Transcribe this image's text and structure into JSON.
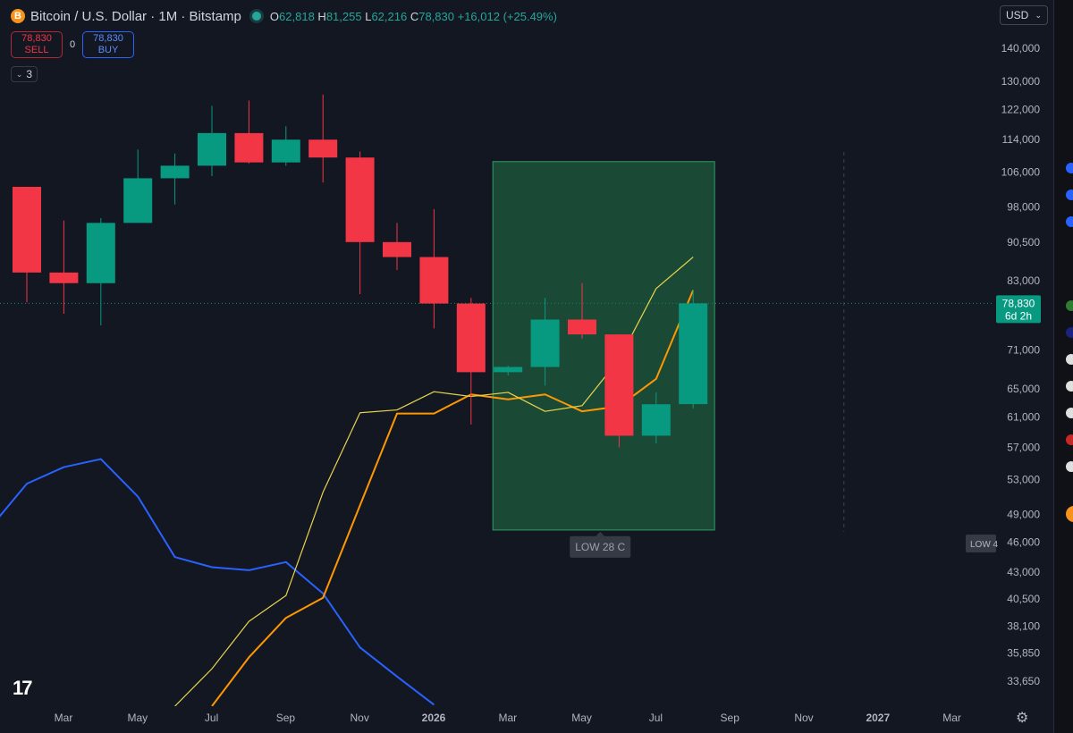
{
  "header": {
    "coin_letter": "B",
    "title": "Bitcoin / U.S. Dollar · 1M · Bitstamp",
    "ohlc": {
      "o_label": "O",
      "o": "62,818",
      "h_label": "H",
      "h": "81,255",
      "l_label": "L",
      "l": "62,216",
      "c_label": "C",
      "c": "78,830",
      "change": "+16,012 (+25.49%)"
    }
  },
  "trade": {
    "sell_price": "78,830",
    "sell_label": "SELL",
    "spread": "0",
    "buy_price": "78,830",
    "buy_label": "BUY"
  },
  "indicators_count": "3",
  "currency": "USD",
  "logo_text": "17",
  "colors": {
    "up": "#089981",
    "down": "#f23645",
    "bg": "#131722",
    "zone": "#1e5c3e",
    "orange": "#ff9800",
    "yellow": "#e8d44d",
    "blue": "#2962ff"
  },
  "chart_data": {
    "type": "candlestick",
    "y_scale": "log",
    "ylim": [
      31800,
      150000
    ],
    "x_axis_labels": [
      "Mar",
      "May",
      "Jul",
      "Sep",
      "Nov",
      "2026",
      "Mar",
      "May",
      "Jul",
      "Sep",
      "Nov",
      "2027",
      "Mar"
    ],
    "y_tick_labels": [
      "140,000",
      "130,000",
      "122,000",
      "114,000",
      "106,000",
      "98,000",
      "90,500",
      "83,000",
      "71,000",
      "65,000",
      "61,000",
      "57,000",
      "53,000",
      "49,000",
      "46,000",
      "43,000",
      "40,500",
      "38,100",
      "35,850",
      "33,650"
    ],
    "candles": [
      {
        "date": "2025-02",
        "o": 102500,
        "h": 102500,
        "l": 79000,
        "c": 84500
      },
      {
        "date": "2025-03",
        "o": 84500,
        "h": 95000,
        "l": 77000,
        "c": 82500
      },
      {
        "date": "2025-04",
        "o": 82500,
        "h": 95500,
        "l": 75000,
        "c": 94500
      },
      {
        "date": "2025-05",
        "o": 94500,
        "h": 111500,
        "l": 94500,
        "c": 104500
      },
      {
        "date": "2025-06",
        "o": 104500,
        "h": 110500,
        "l": 98500,
        "c": 107500
      },
      {
        "date": "2025-07",
        "o": 107500,
        "h": 123000,
        "l": 105000,
        "c": 115700
      },
      {
        "date": "2025-08",
        "o": 115700,
        "h": 124500,
        "l": 108000,
        "c": 108300
      },
      {
        "date": "2025-09",
        "o": 108300,
        "h": 117500,
        "l": 107500,
        "c": 114000
      },
      {
        "date": "2025-10",
        "o": 114000,
        "h": 126200,
        "l": 103500,
        "c": 109500
      },
      {
        "date": "2025-11",
        "o": 109500,
        "h": 111000,
        "l": 80500,
        "c": 90500
      },
      {
        "date": "2025-12",
        "o": 90500,
        "h": 94500,
        "l": 85000,
        "c": 87500
      },
      {
        "date": "2026-01",
        "o": 87500,
        "h": 97500,
        "l": 74500,
        "c": 78800
      },
      {
        "date": "2026-02",
        "o": 78800,
        "h": 79800,
        "l": 60000,
        "c": 67500
      },
      {
        "date": "2026-03",
        "o": 67500,
        "h": 68500,
        "l": 67000,
        "c": 68300
      },
      {
        "date": "2026-04",
        "o": 68300,
        "h": 79800,
        "l": 65500,
        "c": 76000
      },
      {
        "date": "2026-05",
        "o": 76000,
        "h": 82500,
        "l": 72800,
        "c": 73500
      },
      {
        "date": "2026-06",
        "o": 73500,
        "h": 73500,
        "l": 57000,
        "c": 58500
      },
      {
        "date": "2026-07",
        "o": 58500,
        "h": 64500,
        "l": 57500,
        "c": 62800
      },
      {
        "date": "2026-08",
        "o": 62818,
        "h": 81255,
        "l": 62216,
        "c": 78830
      }
    ],
    "overlay_lines": [
      {
        "color": "blue",
        "points": [
          [
            "2025-01",
            47500
          ],
          [
            "2025-02",
            52500
          ],
          [
            "2025-03",
            54500
          ],
          [
            "2025-04",
            55500
          ],
          [
            "2025-05",
            51000
          ],
          [
            "2025-06",
            44500
          ],
          [
            "2025-07",
            43500
          ],
          [
            "2025-08",
            43200
          ],
          [
            "2025-09",
            44000
          ],
          [
            "2025-10",
            41000
          ],
          [
            "2025-11",
            36300
          ],
          [
            "2025-12",
            34000
          ],
          [
            "2026-01",
            31900
          ]
        ]
      },
      {
        "color": "orange",
        "points": [
          [
            "2025-07",
            31800
          ],
          [
            "2025-08",
            35500
          ],
          [
            "2025-09",
            38800
          ],
          [
            "2025-10",
            40600
          ],
          [
            "2025-11",
            50000
          ],
          [
            "2025-12",
            61500
          ],
          [
            "2026-01",
            61500
          ],
          [
            "2026-02",
            64200
          ],
          [
            "2026-03",
            63500
          ],
          [
            "2026-04",
            64200
          ],
          [
            "2026-05",
            61800
          ],
          [
            "2026-06",
            62500
          ],
          [
            "2026-07",
            66500
          ],
          [
            "2026-08",
            81200
          ]
        ]
      },
      {
        "color": "yellow",
        "points": [
          [
            "2025-06",
            31800
          ],
          [
            "2025-07",
            34600
          ],
          [
            "2025-08",
            38500
          ],
          [
            "2025-09",
            40800
          ],
          [
            "2025-10",
            51500
          ],
          [
            "2025-11",
            61600
          ],
          [
            "2025-12",
            62000
          ],
          [
            "2026-01",
            64600
          ],
          [
            "2026-02",
            63900
          ],
          [
            "2026-03",
            64500
          ],
          [
            "2026-04",
            61800
          ],
          [
            "2026-05",
            62600
          ],
          [
            "2026-06",
            69500
          ],
          [
            "2026-07",
            81500
          ],
          [
            "2026-08",
            87500
          ]
        ]
      }
    ],
    "zone": {
      "from": "2026-03",
      "to": "2026-08",
      "top": 108500,
      "bottom": 47300
    },
    "zone_label": "LOW 28 C",
    "right_tag": "LOW 4",
    "price_tag": "78,830",
    "countdown": "6d 2h",
    "price_line": 78830,
    "dashed_line_at": "2026-12",
    "grid": false
  }
}
